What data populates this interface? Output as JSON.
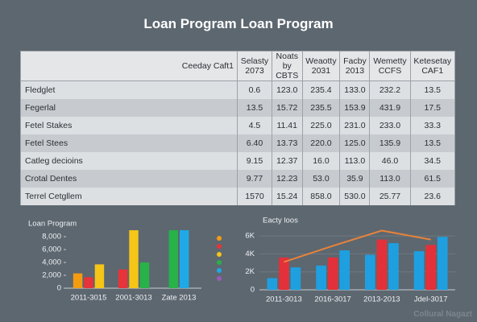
{
  "title": "Loan Program Loan Program",
  "table": {
    "headers": [
      "Ceeday Caft1",
      "Selasty 2073",
      "Noats by CBTS",
      "Weaotty 2031",
      "Facby 2013",
      "Wemetty CCFS",
      "Ketesetay CAF1"
    ],
    "rows": [
      [
        "Fledglet",
        "0.6",
        "123.0",
        "235.4",
        "133.0",
        "232.2",
        "13.5"
      ],
      [
        "Fegerlal",
        "13.5",
        "15.72",
        "235.5",
        "153.9",
        "431.9",
        "17.5"
      ],
      [
        "Fetel Stakes",
        "4.5",
        "11.41",
        "225.0",
        "231.0",
        "233.0",
        "33.3"
      ],
      [
        "Fetel Stees",
        "6.40",
        "13.73",
        "220.0",
        "125.0",
        "135.9",
        "13.5"
      ],
      [
        "Catleg decioins",
        "9.15",
        "12.37",
        "16.0",
        "113.0",
        "46.0",
        "34.5"
      ],
      [
        "Crotal Dentes",
        "9.77",
        "12.23",
        "53.0",
        "35.9",
        "113.0",
        "61.5"
      ],
      [
        "Terrel Cetgllem",
        "1570",
        "15.24",
        "858.0",
        "530.0",
        "25.77",
        "23.6"
      ]
    ]
  },
  "chart_data": [
    {
      "type": "bar",
      "title": "Loan Program",
      "categories": [
        "2011-3015",
        "2001-3013",
        "Zate 2013"
      ],
      "series": [
        {
          "color": "#f39c12",
          "values": [
            2300,
            null,
            null
          ]
        },
        {
          "color": "#e8333a",
          "values": [
            1700,
            2900,
            null
          ]
        },
        {
          "color": "#f5c518",
          "values": [
            3700,
            9000,
            null
          ]
        },
        {
          "color": "#27b24a",
          "values": [
            null,
            4000,
            9000
          ]
        },
        {
          "color": "#1fa9e6",
          "values": [
            null,
            null,
            9000
          ]
        }
      ],
      "ylim": [
        0,
        9000
      ],
      "yticks": [
        0,
        {
          "value": 2000,
          "label": "2,000"
        },
        {
          "value": 4000,
          "label": "4,000"
        },
        {
          "value": 6000,
          "label": "6,000"
        },
        {
          "value": 8000,
          "label": "8,000"
        }
      ],
      "grid": false
    },
    {
      "type": "bar",
      "title": "Eacty loos",
      "categories": [
        "2011-3013",
        "2016-3017",
        "2013-2013",
        "Jdel-3017"
      ],
      "series": [
        {
          "color": "#1ea0e0",
          "values": [
            1300,
            2700,
            3900,
            4300
          ]
        },
        {
          "color": "#e2313a",
          "values": [
            3600,
            3600,
            5600,
            5000
          ]
        },
        {
          "color": "#1ea0e0",
          "values": [
            2500,
            4400,
            5200,
            5900
          ]
        },
        {
          "color": "#e8833a",
          "kind": "line",
          "values": [
            3100,
            4900,
            6600,
            5600
          ]
        }
      ],
      "ylim": [
        0,
        7000
      ],
      "yticks": [
        0,
        {
          "value": 2000,
          "label": "2K"
        },
        {
          "value": 4000,
          "label": "4K"
        },
        {
          "value": 6000,
          "label": "6K"
        }
      ],
      "grid": true
    }
  ],
  "watermark": "Collural Nagazt"
}
